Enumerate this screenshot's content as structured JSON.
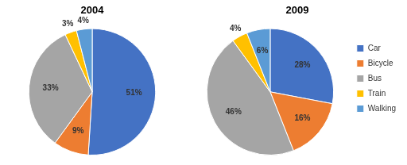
{
  "chart_data": [
    {
      "type": "pie",
      "title": "2004",
      "categories": [
        "Car",
        "Bicycle",
        "Bus",
        "Train",
        "Walking"
      ],
      "values": [
        51,
        9,
        33,
        3,
        4
      ],
      "value_labels": [
        "51%",
        "9%",
        "33%",
        "3%",
        "4%"
      ],
      "colors": [
        "#4472c4",
        "#ed7d31",
        "#a5a5a5",
        "#ffc000",
        "#5b9bd5"
      ],
      "data_labels": true
    },
    {
      "type": "pie",
      "title": "2009",
      "categories": [
        "Car",
        "Bicycle",
        "Bus",
        "Train",
        "Walking"
      ],
      "values": [
        28,
        16,
        46,
        4,
        6
      ],
      "value_labels": [
        "28%",
        "16%",
        "46%",
        "4%",
        "6%"
      ],
      "colors": [
        "#4472c4",
        "#ed7d31",
        "#a5a5a5",
        "#ffc000",
        "#5b9bd5"
      ],
      "data_labels": true,
      "legend": "right"
    }
  ]
}
